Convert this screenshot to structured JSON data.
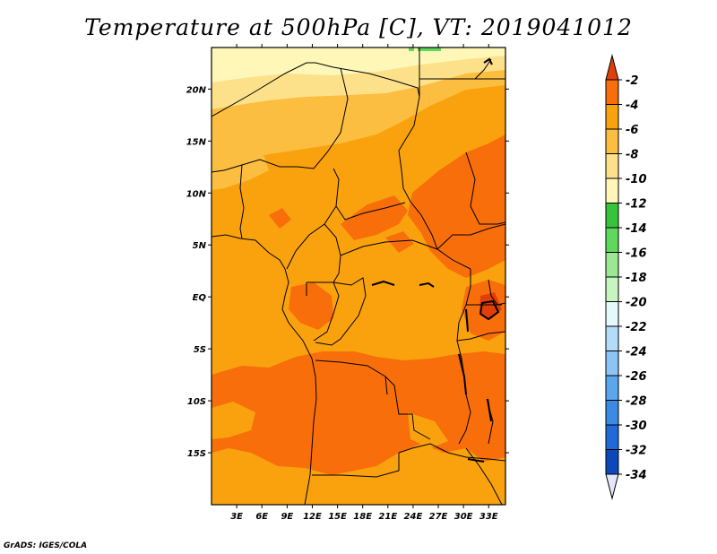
{
  "title": "Temperature at 500hPa [C], VT: 2019041012",
  "credit": "GrADS: IGES/COLA",
  "chart_data": {
    "type": "heatmap",
    "variable": "Temperature at 500hPa",
    "units": "C",
    "valid_time": "2019041012",
    "lon_range": [
      0,
      35
    ],
    "lat_range": [
      -20,
      24
    ],
    "lon_ticks": [
      "3E",
      "6E",
      "9E",
      "12E",
      "15E",
      "18E",
      "21E",
      "24E",
      "27E",
      "30E",
      "33E"
    ],
    "lat_ticks": [
      "20N",
      "15N",
      "10N",
      "5N",
      "EQ",
      "5S",
      "10S",
      "15S"
    ],
    "colorbar": {
      "labels": [
        "-2",
        "-4",
        "-6",
        "-8",
        "-10",
        "-12",
        "-14",
        "-16",
        "-18",
        "-20",
        "-22",
        "-24",
        "-26",
        "-28",
        "-30",
        "-32",
        "-34"
      ],
      "colors": [
        "#e23e0a",
        "#f86e0a",
        "#f9a20e",
        "#fbbe40",
        "#fde18a",
        "#fef7b8",
        "#38c43a",
        "#60d85c",
        "#9ae88f",
        "#c6f5c0",
        "#e5f8fb",
        "#b3dcf9",
        "#8cc4f5",
        "#5aa7ed",
        "#3b8ae4",
        "#1f6ad6",
        "#0d48b8",
        "#0a1e7a"
      ]
    }
  }
}
